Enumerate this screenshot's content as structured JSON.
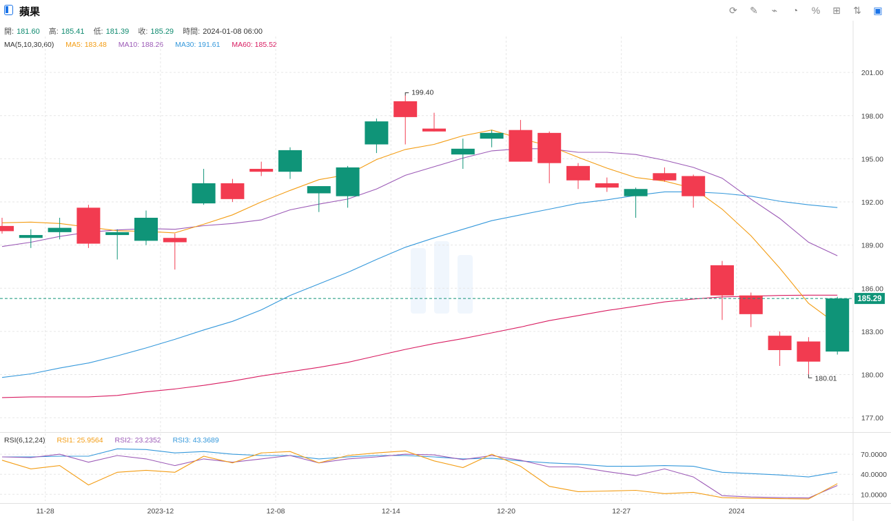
{
  "header": {
    "title": "蘋果",
    "tools": [
      {
        "name": "refresh-icon",
        "glyph": "⟳"
      },
      {
        "name": "draw-tool-icon",
        "glyph": "✎"
      },
      {
        "name": "indicator-icon",
        "glyph": "⌁"
      },
      {
        "name": "pie-chart-icon",
        "glyph": "◔"
      },
      {
        "name": "percent-icon",
        "glyph": "%"
      },
      {
        "name": "grid-layout-icon",
        "glyph": "⊞"
      },
      {
        "name": "sort-icon",
        "glyph": "⇅"
      },
      {
        "name": "panel-icon",
        "glyph": "▣"
      }
    ]
  },
  "ohlc": {
    "open_label": "開:",
    "open": "181.60",
    "high_label": "高:",
    "high": "185.41",
    "low_label": "低:",
    "low": "181.39",
    "close_label": "收:",
    "close": "185.29",
    "time_label": "時間:",
    "time": "2024-01-08 06:00"
  },
  "ma_legend": {
    "title": "MA(5,10,30,60)",
    "ma5": "MA5: 183.48",
    "ma10": "MA10: 188.26",
    "ma30": "MA30: 191.61",
    "ma60": "MA60: 185.52"
  },
  "rsi_legend": {
    "title": "RSI(6,12,24)",
    "rsi1": "RSI1: 25.9564",
    "rsi2": "RSI2: 23.2352",
    "rsi3": "RSI3: 43.3689"
  },
  "colors": {
    "up": "#0f9478",
    "down": "#f23b50",
    "ma5": "#f39c12",
    "ma10": "#9b59b6",
    "ma30": "#3498db",
    "ma60": "#d81b60",
    "grid": "#e6e6e6"
  },
  "chart_data": {
    "type": "candlestick",
    "x_ticks": [
      "11-28",
      "2023-12",
      "12-08",
      "12-14",
      "12-20",
      "12-27",
      "2024"
    ],
    "x_tick_index": [
      1.5,
      5.5,
      9.5,
      13.5,
      17.5,
      21.5,
      25.5
    ],
    "y_ticks": [
      "201.00",
      "198.00",
      "195.00",
      "192.00",
      "189.00",
      "186.00",
      "183.00",
      "180.00",
      "177.00"
    ],
    "ylim": [
      176.0,
      203.5
    ],
    "last_price": "185.29",
    "max_annotation": "199.40",
    "min_annotation": "180.01",
    "candles": [
      {
        "o": 190.33,
        "h": 190.9,
        "l": 189.8,
        "c": 189.97
      },
      {
        "o": 189.5,
        "h": 190.1,
        "l": 188.8,
        "c": 189.7
      },
      {
        "o": 189.9,
        "h": 190.9,
        "l": 189.4,
        "c": 190.2
      },
      {
        "o": 191.6,
        "h": 191.8,
        "l": 188.8,
        "c": 189.1
      },
      {
        "o": 189.7,
        "h": 190.1,
        "l": 188.0,
        "c": 189.9
      },
      {
        "o": 189.3,
        "h": 191.4,
        "l": 189.0,
        "c": 190.9
      },
      {
        "o": 189.5,
        "h": 189.8,
        "l": 187.3,
        "c": 189.2
      },
      {
        "o": 191.9,
        "h": 194.3,
        "l": 191.8,
        "c": 193.3
      },
      {
        "o": 193.3,
        "h": 193.6,
        "l": 192.0,
        "c": 192.2
      },
      {
        "o": 194.3,
        "h": 194.8,
        "l": 193.8,
        "c": 194.1
      },
      {
        "o": 194.1,
        "h": 195.8,
        "l": 193.6,
        "c": 195.6
      },
      {
        "o": 192.6,
        "h": 193.1,
        "l": 191.3,
        "c": 193.1
      },
      {
        "o": 192.4,
        "h": 194.5,
        "l": 191.6,
        "c": 194.4
      },
      {
        "o": 196.0,
        "h": 197.8,
        "l": 195.4,
        "c": 197.6
      },
      {
        "o": 199.0,
        "h": 199.4,
        "l": 196.0,
        "c": 197.9
      },
      {
        "o": 197.1,
        "h": 198.2,
        "l": 196.9,
        "c": 196.9
      },
      {
        "o": 195.3,
        "h": 196.4,
        "l": 194.3,
        "c": 195.7
      },
      {
        "o": 196.4,
        "h": 197.0,
        "l": 195.8,
        "c": 196.8
      },
      {
        "o": 197.0,
        "h": 197.7,
        "l": 194.8,
        "c": 194.8
      },
      {
        "o": 196.8,
        "h": 196.9,
        "l": 193.3,
        "c": 194.7
      },
      {
        "o": 194.5,
        "h": 194.7,
        "l": 192.9,
        "c": 193.5
      },
      {
        "o": 193.3,
        "h": 193.7,
        "l": 192.7,
        "c": 193.0
      },
      {
        "o": 192.4,
        "h": 193.0,
        "l": 190.9,
        "c": 192.9
      },
      {
        "o": 194.0,
        "h": 194.4,
        "l": 193.4,
        "c": 193.5
      },
      {
        "o": 193.8,
        "h": 193.9,
        "l": 191.6,
        "c": 192.4
      },
      {
        "o": 187.6,
        "h": 187.9,
        "l": 183.8,
        "c": 185.5
      },
      {
        "o": 185.5,
        "h": 185.7,
        "l": 183.3,
        "c": 184.2
      },
      {
        "o": 182.7,
        "h": 183.0,
        "l": 180.6,
        "c": 181.7
      },
      {
        "o": 182.3,
        "h": 182.6,
        "l": 180.01,
        "c": 180.9
      },
      {
        "o": 181.6,
        "h": 185.41,
        "l": 181.39,
        "c": 185.29
      }
    ],
    "ma5": [
      190.55,
      190.6,
      190.5,
      190.25,
      190.0,
      189.95,
      189.85,
      190.45,
      191.1,
      192.0,
      192.8,
      193.55,
      193.9,
      194.95,
      195.65,
      196.0,
      196.6,
      197.0,
      196.4,
      195.9,
      195.1,
      194.35,
      193.7,
      193.45,
      192.95,
      191.5,
      189.65,
      187.4,
      184.95,
      183.48
    ],
    "ma10": [
      188.9,
      189.2,
      189.6,
      189.9,
      190.05,
      190.15,
      190.1,
      190.35,
      190.5,
      190.75,
      191.45,
      191.85,
      192.2,
      192.9,
      193.85,
      194.45,
      195.05,
      195.55,
      195.7,
      195.7,
      195.45,
      195.45,
      195.3,
      194.9,
      194.4,
      193.65,
      192.2,
      190.85,
      189.2,
      188.26
    ],
    "ma30": [
      179.8,
      180.05,
      180.45,
      180.8,
      181.3,
      181.85,
      182.45,
      183.1,
      183.7,
      184.5,
      185.5,
      186.3,
      187.1,
      188.0,
      188.85,
      189.5,
      190.1,
      190.7,
      191.1,
      191.5,
      191.9,
      192.15,
      192.45,
      192.7,
      192.7,
      192.6,
      192.4,
      192.05,
      191.8,
      191.61
    ],
    "ma60": [
      178.4,
      178.45,
      178.45,
      178.45,
      178.55,
      178.8,
      179.0,
      179.25,
      179.55,
      179.9,
      180.2,
      180.5,
      180.85,
      181.3,
      181.75,
      182.15,
      182.5,
      182.9,
      183.3,
      183.75,
      184.1,
      184.45,
      184.75,
      185.05,
      185.25,
      185.4,
      185.45,
      185.5,
      185.52,
      185.52
    ],
    "rsi_y_ticks": [
      "70.0000",
      "40.0000",
      "10.0000"
    ],
    "rsi_ylim": [
      0,
      100
    ],
    "rsi1": [
      61,
      48,
      53,
      24,
      43,
      46,
      43,
      67,
      57,
      72,
      74,
      57,
      68,
      72,
      75,
      60,
      50,
      70,
      52,
      22,
      14,
      15,
      16,
      11,
      13,
      5,
      4,
      3.5,
      3,
      25.9564
    ],
    "rsi2": [
      66,
      65,
      70,
      58,
      68,
      63,
      53,
      63,
      58,
      63,
      68,
      57,
      63,
      66,
      70,
      69,
      62,
      68,
      61,
      51,
      51,
      44,
      38,
      48,
      36,
      8,
      6,
      5,
      4.5,
      23.2352
    ],
    "rsi3": [
      66,
      66,
      67,
      67,
      78,
      77,
      72,
      74,
      70,
      68,
      68,
      63,
      66,
      68,
      68,
      66,
      63,
      64,
      60,
      57,
      55,
      52,
      52,
      53,
      52,
      43,
      41,
      39,
      36,
      43.3689
    ]
  }
}
